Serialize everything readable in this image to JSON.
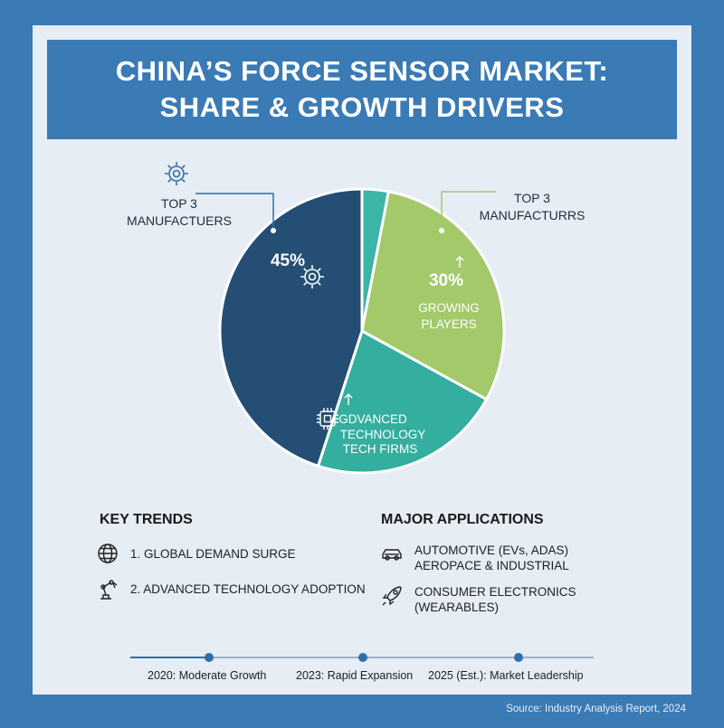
{
  "title": {
    "line1": "CHINA’S FORCE SENSOR MARKET:",
    "line2": "SHARE & GROWTH DRIVERS"
  },
  "chart_data": {
    "type": "pie",
    "slices": [
      {
        "label": "Top 3 Manufacturers",
        "value": 45,
        "color": "#244e73"
      },
      {
        "label": "",
        "value": 3,
        "color": "#3bb5a5"
      },
      {
        "label": "Growing Players",
        "value": 30,
        "color": "#a3c96b"
      },
      {
        "label": "Advanced Technology Tech Firms",
        "value": 22,
        "color": "#34ae9e"
      }
    ],
    "labels": {
      "slice_top3_pct": "45%",
      "slice_growing_pct": "30%",
      "slice_growing_name_1": "GROWING",
      "slice_growing_name_2": "PLAYERS",
      "slice_tech_name_1": "GDVANCED",
      "slice_tech_name_2": "TECHNOLOGY",
      "slice_tech_name_3": "TECH FIRMS"
    },
    "callouts": {
      "left_line1": "TOP 3",
      "left_line2": "MANUFACTUERS",
      "right_line1": "TOP 3",
      "right_line2": "MANUFACTURRS"
    }
  },
  "key_trends": {
    "heading": "KEY TRENDS",
    "items": [
      {
        "text": "1. GLOBAL DEMAND SURGE",
        "icon": "globe-icon"
      },
      {
        "text": "2. ADVANCED TECHNOLOGY ADOPTION",
        "icon": "robot-arm-icon"
      }
    ]
  },
  "applications": {
    "heading": "MAJOR APPLICATIONS",
    "items": [
      {
        "line1": "AUTOMOTIVE (EVs, ADAS)",
        "line2": "AEROPACE & INDUSTRIAL",
        "icon": "car-icon"
      },
      {
        "line1": "CONSUMER ELECTRONICS",
        "line2": "(WEARABLES)",
        "icon": "rocket-icon"
      }
    ]
  },
  "timeline": [
    {
      "label": "2020: Moderate Growth"
    },
    {
      "label": "2023: Rapid Expansion"
    },
    {
      "label": "2025 (Est.): Market Leadership"
    }
  ],
  "source": "Source: Industry Analysis Report, 2024"
}
